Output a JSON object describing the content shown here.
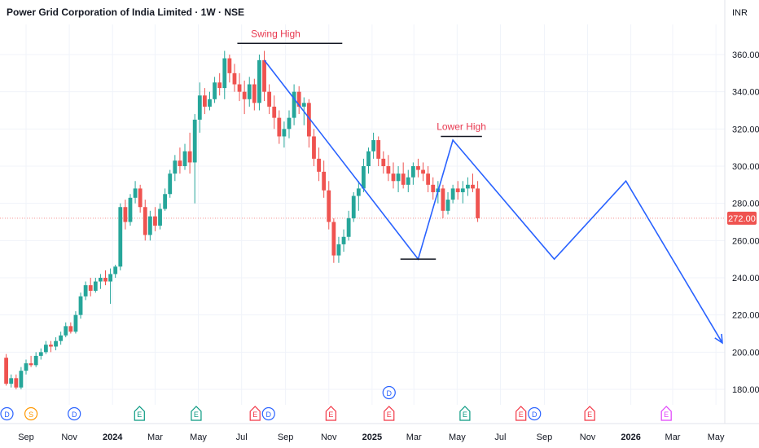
{
  "header": {
    "title": "Power Grid Corporation of India Limited · 1W · NSE",
    "currency": "INR"
  },
  "colors": {
    "up": "#26a69a",
    "down": "#ef5350",
    "drawing": "#2962ff",
    "annotation": "#e8384f",
    "priceLine": "#ef5350",
    "grid": "#f0f3fa",
    "lastPriceBg": "#ef5350"
  },
  "chart_data": {
    "type": "candlestick",
    "title": "Power Grid Corporation of India Limited · 1W · NSE",
    "ylim": [
      170,
      372
    ],
    "y_ticks": [
      180,
      200,
      220,
      240,
      260,
      280,
      300,
      320,
      340,
      360
    ],
    "y_tick_labels": [
      "180.00",
      "200.00",
      "220.00",
      "240.00",
      "260.00",
      "280.00",
      "300.00",
      "320.00",
      "340.00",
      "360.00"
    ],
    "x_ticks": [
      {
        "label": "Sep",
        "date": "2023-09"
      },
      {
        "label": "Nov",
        "date": "2023-11"
      },
      {
        "label": "2024",
        "date": "2024-01"
      },
      {
        "label": "Mar",
        "date": "2024-03"
      },
      {
        "label": "May",
        "date": "2024-05"
      },
      {
        "label": "Jul",
        "date": "2024-07"
      },
      {
        "label": "Sep",
        "date": "2024-09"
      },
      {
        "label": "Nov",
        "date": "2024-11"
      },
      {
        "label": "2025",
        "date": "2025-01"
      },
      {
        "label": "Mar",
        "date": "2025-03"
      },
      {
        "label": "May",
        "date": "2025-05"
      },
      {
        "label": "Jul",
        "date": "2025-07"
      },
      {
        "label": "Sep",
        "date": "2025-09"
      },
      {
        "label": "Nov",
        "date": "2025-11"
      },
      {
        "label": "2026",
        "date": "2026-01"
      },
      {
        "label": "Mar",
        "date": "2026-03"
      },
      {
        "label": "May",
        "date": "2026-05"
      }
    ],
    "last_price": {
      "value": 272.0,
      "label": "272.00"
    },
    "candles": [
      [
        197,
        199,
        182,
        183
      ],
      [
        183,
        188,
        181,
        186
      ],
      [
        186,
        188,
        180,
        181
      ],
      [
        181,
        192,
        180,
        190
      ],
      [
        190,
        196,
        188,
        194
      ],
      [
        194,
        198,
        192,
        193
      ],
      [
        193,
        200,
        192,
        198
      ],
      [
        198,
        202,
        196,
        200
      ],
      [
        200,
        206,
        199,
        204
      ],
      [
        204,
        206,
        200,
        203
      ],
      [
        203,
        208,
        201,
        206
      ],
      [
        206,
        211,
        204,
        209
      ],
      [
        209,
        216,
        208,
        214
      ],
      [
        214,
        216,
        210,
        211
      ],
      [
        211,
        222,
        210,
        220
      ],
      [
        220,
        232,
        218,
        230
      ],
      [
        230,
        238,
        228,
        236
      ],
      [
        236,
        240,
        230,
        233
      ],
      [
        233,
        240,
        232,
        238
      ],
      [
        238,
        242,
        234,
        240
      ],
      [
        240,
        244,
        236,
        238
      ],
      [
        238,
        245,
        226,
        242
      ],
      [
        242,
        247,
        240,
        246
      ],
      [
        246,
        280,
        244,
        278
      ],
      [
        278,
        282,
        266,
        270
      ],
      [
        270,
        285,
        268,
        283
      ],
      [
        283,
        292,
        280,
        288
      ],
      [
        288,
        290,
        275,
        278
      ],
      [
        278,
        282,
        260,
        263
      ],
      [
        263,
        276,
        260,
        273
      ],
      [
        273,
        278,
        265,
        268
      ],
      [
        268,
        280,
        266,
        277
      ],
      [
        277,
        288,
        276,
        285
      ],
      [
        285,
        298,
        283,
        296
      ],
      [
        296,
        306,
        292,
        303
      ],
      [
        303,
        310,
        296,
        300
      ],
      [
        300,
        312,
        298,
        308
      ],
      [
        308,
        318,
        296,
        302
      ],
      [
        302,
        328,
        280,
        325
      ],
      [
        325,
        345,
        318,
        338
      ],
      [
        338,
        342,
        328,
        332
      ],
      [
        332,
        340,
        330,
        336
      ],
      [
        336,
        348,
        334,
        345
      ],
      [
        345,
        350,
        338,
        342
      ],
      [
        342,
        362,
        336,
        358
      ],
      [
        358,
        360,
        345,
        350
      ],
      [
        350,
        355,
        340,
        344
      ],
      [
        344,
        350,
        335,
        340
      ],
      [
        340,
        346,
        328,
        336
      ],
      [
        336,
        348,
        332,
        344
      ],
      [
        344,
        347,
        330,
        334
      ],
      [
        334,
        360,
        330,
        357
      ],
      [
        357,
        362,
        335,
        340
      ],
      [
        340,
        344,
        328,
        332
      ],
      [
        332,
        338,
        320,
        326
      ],
      [
        326,
        330,
        312,
        316
      ],
      [
        316,
        324,
        310,
        320
      ],
      [
        320,
        330,
        315,
        326
      ],
      [
        326,
        344,
        322,
        340
      ],
      [
        340,
        343,
        328,
        332
      ],
      [
        332,
        337,
        322,
        334
      ],
      [
        334,
        336,
        310,
        316
      ],
      [
        316,
        320,
        300,
        304
      ],
      [
        304,
        310,
        292,
        297
      ],
      [
        297,
        303,
        283,
        287
      ],
      [
        287,
        292,
        266,
        270
      ],
      [
        270,
        272,
        248,
        252
      ],
      [
        252,
        262,
        248,
        258
      ],
      [
        258,
        266,
        254,
        262
      ],
      [
        262,
        276,
        260,
        272
      ],
      [
        272,
        286,
        270,
        284
      ],
      [
        284,
        292,
        276,
        288
      ],
      [
        288,
        304,
        286,
        300
      ],
      [
        300,
        310,
        296,
        308
      ],
      [
        308,
        318,
        304,
        314
      ],
      [
        314,
        316,
        300,
        304
      ],
      [
        304,
        308,
        296,
        300
      ],
      [
        300,
        306,
        292,
        296
      ],
      [
        296,
        302,
        288,
        292
      ],
      [
        292,
        300,
        286,
        296
      ],
      [
        296,
        302,
        288,
        290
      ],
      [
        290,
        298,
        286,
        294
      ],
      [
        294,
        302,
        290,
        300
      ],
      [
        300,
        304,
        294,
        298
      ],
      [
        298,
        302,
        292,
        296
      ],
      [
        296,
        300,
        286,
        290
      ],
      [
        290,
        294,
        282,
        286
      ],
      [
        286,
        292,
        280,
        288
      ],
      [
        288,
        290,
        272,
        276
      ],
      [
        276,
        286,
        274,
        282
      ],
      [
        282,
        290,
        280,
        288
      ],
      [
        288,
        292,
        282,
        286
      ],
      [
        286,
        292,
        280,
        288
      ],
      [
        288,
        294,
        284,
        290
      ],
      [
        290,
        296,
        286,
        288
      ],
      [
        288,
        292,
        270,
        272
      ]
    ],
    "drawing_path": [
      {
        "date": "2024-08-02",
        "price": 357
      },
      {
        "date": "2025-03-07",
        "price": 250
      },
      {
        "date": "2025-04-25",
        "price": 314
      },
      {
        "date": "2025-09-15",
        "price": 250
      },
      {
        "date": "2025-12-25",
        "price": 292
      },
      {
        "date": "2026-05-10",
        "price": 205
      }
    ],
    "annotations": [
      {
        "text": "Swing High",
        "date": "2024-08-18",
        "price": 366,
        "from": "2024-06-25",
        "to": "2024-11-20"
      },
      {
        "text": "Lower High",
        "date": "2025-05-07",
        "price": 316,
        "from": "2025-04-08",
        "to": "2025-06-05"
      },
      {
        "text": "",
        "date": "2025-03-10",
        "price": 250,
        "from": "2025-02-10",
        "to": "2025-04-01"
      }
    ],
    "events": [
      {
        "letter": "D",
        "date": "2023-08-05",
        "color": "#2962ff"
      },
      {
        "letter": "S",
        "date": "2023-09-08",
        "color": "#ff9800"
      },
      {
        "letter": "D",
        "date": "2023-11-08",
        "color": "#2962ff"
      },
      {
        "letter": "E",
        "date": "2024-02-08",
        "color": "#089981"
      },
      {
        "letter": "E",
        "date": "2024-04-28",
        "color": "#089981"
      },
      {
        "letter": "E",
        "date": "2024-07-20",
        "color": "#f23645"
      },
      {
        "letter": "D",
        "date": "2024-08-08",
        "color": "#2962ff"
      },
      {
        "letter": "E",
        "date": "2024-11-04",
        "color": "#f23645"
      },
      {
        "letter": "D",
        "date": "2025-01-25",
        "color": "#2962ff",
        "raised": true
      },
      {
        "letter": "E",
        "date": "2025-01-25",
        "color": "#f23645"
      },
      {
        "letter": "E",
        "date": "2025-05-12",
        "color": "#089981"
      },
      {
        "letter": "E",
        "date": "2025-07-30",
        "color": "#f23645"
      },
      {
        "letter": "D",
        "date": "2025-08-18",
        "color": "#2962ff"
      },
      {
        "letter": "E",
        "date": "2025-11-04",
        "color": "#f23645"
      },
      {
        "letter": "E",
        "date": "2026-02-20",
        "color": "#e040fb"
      }
    ]
  }
}
